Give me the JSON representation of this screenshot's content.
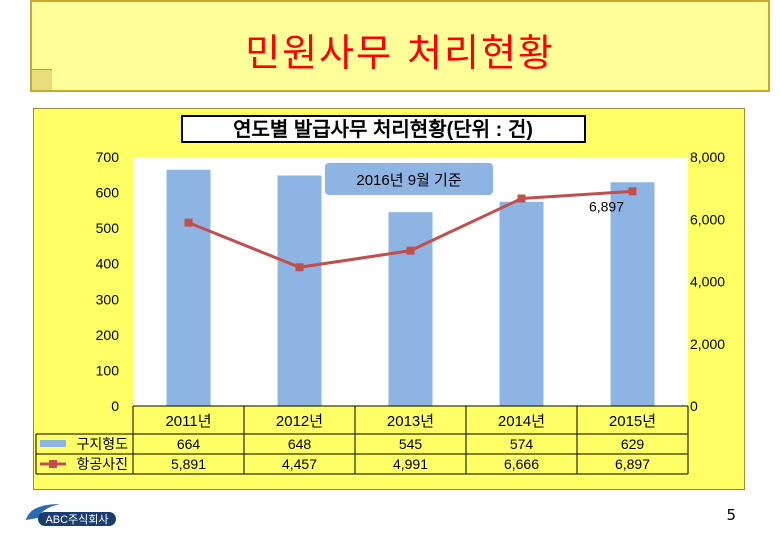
{
  "slide": {
    "title": "민원사무 처리현황",
    "page_number": "5",
    "logo_text": "ABC주식회사"
  },
  "chart_data": {
    "type": "bar",
    "title": "연도별 발급사무 처리현황(단위 : 건)",
    "annotation": "2016년 9월 기준",
    "categories": [
      "2011년",
      "2012년",
      "2013년",
      "2014년",
      "2015년"
    ],
    "series": [
      {
        "name": "구지형도",
        "kind": "bar",
        "axis": "left",
        "color": "#8eb4e3",
        "values": [
          664,
          648,
          545,
          574,
          629
        ],
        "labels": [
          "664",
          "648",
          "545",
          "574",
          "629"
        ]
      },
      {
        "name": "항공사진",
        "kind": "line",
        "axis": "right",
        "color": "#c0504d",
        "values": [
          5891,
          4457,
          4991,
          6666,
          6897
        ],
        "labels": [
          "5,891",
          "4,457",
          "4,991",
          "6,666",
          "6,897"
        ]
      }
    ],
    "data_label": "6,897",
    "ylim_left": [
      0,
      700
    ],
    "yticks_left": [
      "0",
      "100",
      "200",
      "300",
      "400",
      "500",
      "600",
      "700"
    ],
    "ylim_right": [
      0,
      8000
    ],
    "yticks_right": [
      "0",
      "2,000",
      "4,000",
      "6,000",
      "8,000"
    ],
    "legend": "data-table",
    "grid": false
  }
}
